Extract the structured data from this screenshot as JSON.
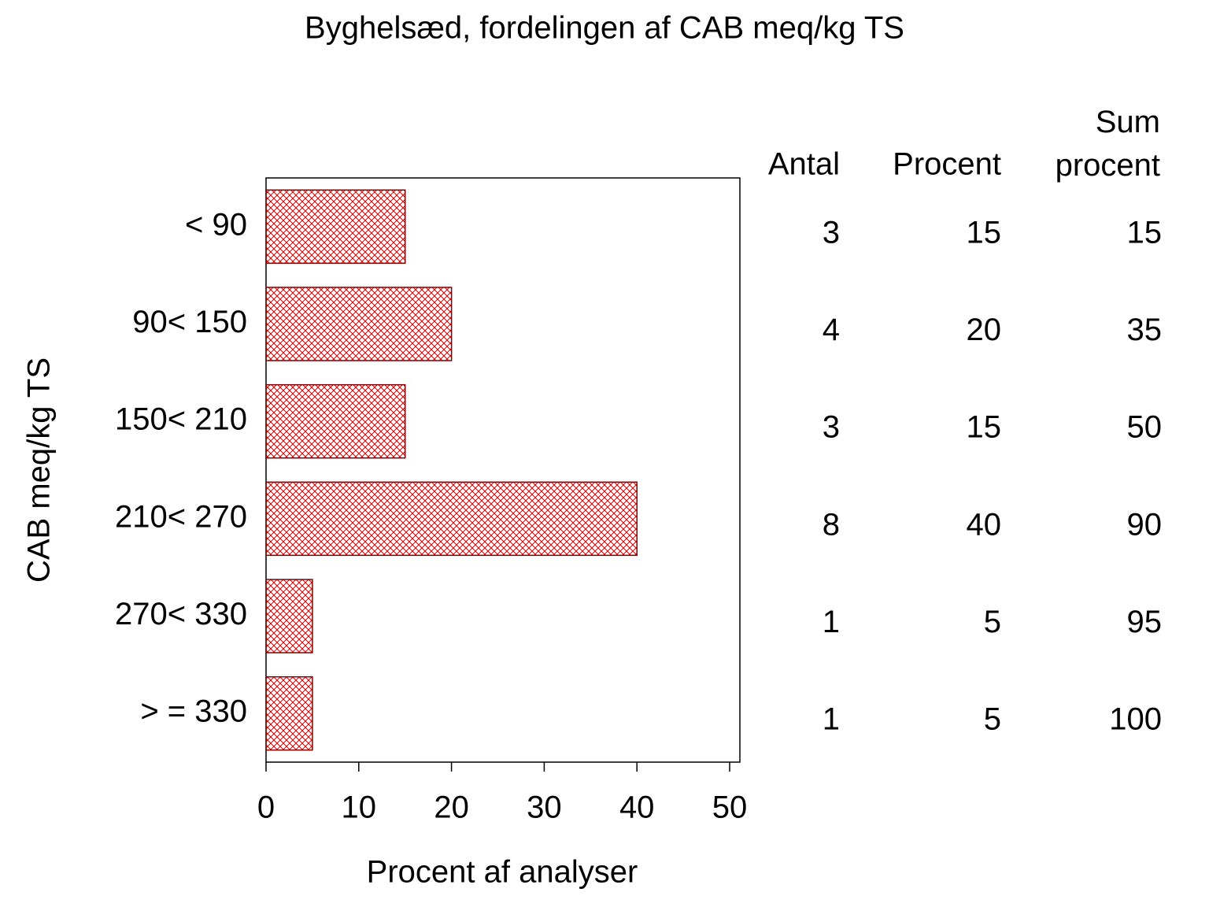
{
  "chart_data": {
    "type": "bar",
    "orientation": "horizontal",
    "title": "Byghelsæd,  fordelingen  af  CAB  meq/kg  TS",
    "ylabel": "CAB  meq/kg  TS",
    "xlabel": "Procent  af  analyser",
    "categories": [
      "< 90",
      "90< 150",
      "150< 210",
      "210< 270",
      "270< 330",
      "> = 330"
    ],
    "values": [
      15,
      20,
      15,
      40,
      5,
      5
    ],
    "color": "#e00000",
    "xlim": [
      0,
      51
    ],
    "xticks": [
      0,
      10,
      20,
      30,
      40,
      50
    ],
    "table": {
      "headers": [
        "Antal",
        "Procent",
        "Sum procent"
      ],
      "antal": [
        3,
        4,
        3,
        8,
        1,
        1
      ],
      "sum_procent": [
        15,
        35,
        50,
        90,
        95,
        100
      ]
    }
  }
}
